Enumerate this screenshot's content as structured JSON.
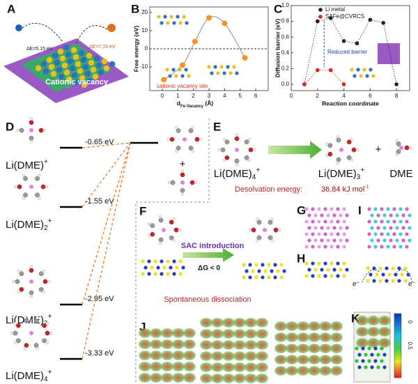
{
  "panel_a": {
    "label": "A",
    "energy_left": "ΔE=5.15 eV",
    "energy_right": "ΔE=7.15 eV",
    "caption": "Cationic vacancy"
  },
  "panel_b": {
    "label": "B",
    "chart": {
      "type": "line",
      "xlabel": "d",
      "xlabel_sub": "Fe-Vacancy",
      "xlabel_unit": " (Å)",
      "ylabel": "Free energy (eV)",
      "x": [
        0.1,
        1.3,
        2.1,
        3.0,
        4.0,
        5.3
      ],
      "values": [
        -17,
        -9,
        4,
        17,
        14,
        -5
      ],
      "color": "#f7941d",
      "curve_color": "#888888",
      "xlim": [
        -0.8,
        6.8
      ],
      "xticks": [
        0,
        1,
        2,
        3,
        4,
        5,
        6
      ],
      "ylim": [
        -23,
        23
      ],
      "yticks": [
        -10,
        0,
        10,
        20
      ],
      "annotation": "cationic vacancy site"
    }
  },
  "panel_c": {
    "label": "C",
    "chart": {
      "type": "scatter",
      "xlabel": "Reaction coordinate",
      "ylabel": "Diffusion barrier (eV)",
      "xlim": [
        0,
        9
      ],
      "xticks": [
        0,
        2,
        4,
        6,
        8
      ],
      "ylim": [
        -0.08,
        1.0
      ],
      "yticks": [
        {
          "value": 0,
          "label": "0.0"
        },
        {
          "value": 0.2,
          "label": "0.2"
        },
        {
          "value": 0.4,
          "label": "0.4"
        },
        {
          "value": 0.6,
          "label": "0.6"
        },
        {
          "value": 0.8,
          "label": "0.8"
        },
        {
          "value": 1,
          "label": "1.0"
        }
      ],
      "series": [
        {
          "name": "Li metal",
          "color": "#222222",
          "x": [
            1,
            2,
            3,
            4,
            5,
            6,
            7,
            8
          ],
          "values": [
            0.0,
            0.8,
            0.84,
            0.55,
            0.52,
            0.82,
            0.78,
            0.0
          ]
        },
        {
          "name": "SAFe@CVRCS",
          "color": "#e02020",
          "x": [
            1,
            2,
            3,
            4
          ],
          "values": [
            0.0,
            0.18,
            0.18,
            0.0
          ]
        }
      ],
      "annotation": "Reduced barrier"
    }
  },
  "panel_d": {
    "label": "D",
    "plus": "+",
    "levels": [
      {
        "name": "Li(DME)",
        "sub": "",
        "sup": "+",
        "energy": "-0.65 eV"
      },
      {
        "name": "Li(DME)",
        "sub": "2",
        "sup": "+",
        "energy": "-1.55 eV"
      },
      {
        "name": "Li(DME)",
        "sub": "3",
        "sup": "+",
        "energy": "-2.95 eV"
      },
      {
        "name": "Li(DME)",
        "sub": "4",
        "sup": "+",
        "energy": "-3.33 eV"
      }
    ]
  },
  "panel_e": {
    "label": "E",
    "reactant": {
      "name": "Li(DME)",
      "sub": "4",
      "sup": "+"
    },
    "product": {
      "name": "Li(DME)",
      "sub": "3",
      "sup": "+"
    },
    "plus": "+",
    "byproduct": "DME",
    "energy_label": "Desolvation energy:",
    "energy_value": "36.84 kJ mol",
    "energy_unit_sup": "-1"
  },
  "panel_f": {
    "label": "F",
    "arrow_top": "SAC introduction",
    "arrow_bottom": "ΔG < 0",
    "caption": "Spontaneous dissociation"
  },
  "panel_g": {
    "label": "G"
  },
  "panel_h": {
    "label": "H"
  },
  "panel_i": {
    "label": "I",
    "electron_left": "e⁻",
    "electron_right": "e⁻"
  },
  "panel_j": {
    "label": "J"
  },
  "panel_k": {
    "label": "K",
    "colorbar_labels": [
      "0",
      "0.5"
    ]
  }
}
